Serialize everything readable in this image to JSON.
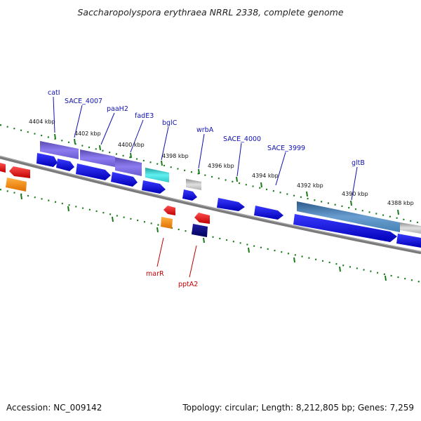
{
  "title": "Saccharopolyspora erythraea NRRL 2338, complete genome",
  "footer": {
    "accession_label": "Accession:",
    "accession": "NC_009142",
    "topology_label": "Topology:",
    "topology": "circular",
    "length_label": "Length:",
    "length": "8,212,805 bp",
    "genes_label": "Genes:",
    "genes": "7,259"
  },
  "footer_text": {
    "left": "Accession: NC_009142",
    "right": "Topology: circular; Length: 8,212,805 bp; Genes: 7,259"
  },
  "colors": {
    "backbone": "#808080",
    "ticks": "#1a7a1a",
    "cds": "#1010e0",
    "gene_purple": "#7b68ee",
    "gene_cyan": "#30d0d0",
    "gene_steel": "#4682b4",
    "gene_gray": "#b8b8b8",
    "rev_red": "#ee1111",
    "rev_orange": "#ff8c00",
    "rev_navy": "#101080",
    "label_forward": "#1010b0",
    "label_reverse": "#c00000"
  },
  "kbp_labels": [
    "4404 kbp",
    "4402 kbp",
    "4400 kbp",
    "4398 kbp",
    "4396 kbp",
    "4394 kbp",
    "4392 kbp",
    "4390 kbp",
    "4388 kbp"
  ],
  "forward_genes": [
    "catI",
    "SACE_4007",
    "paaH2",
    "fadE3",
    "bglC",
    "wrbA",
    "SACE_4000",
    "SACE_3999",
    "gltB"
  ],
  "reverse_genes": [
    "marR",
    "pptA2"
  ]
}
